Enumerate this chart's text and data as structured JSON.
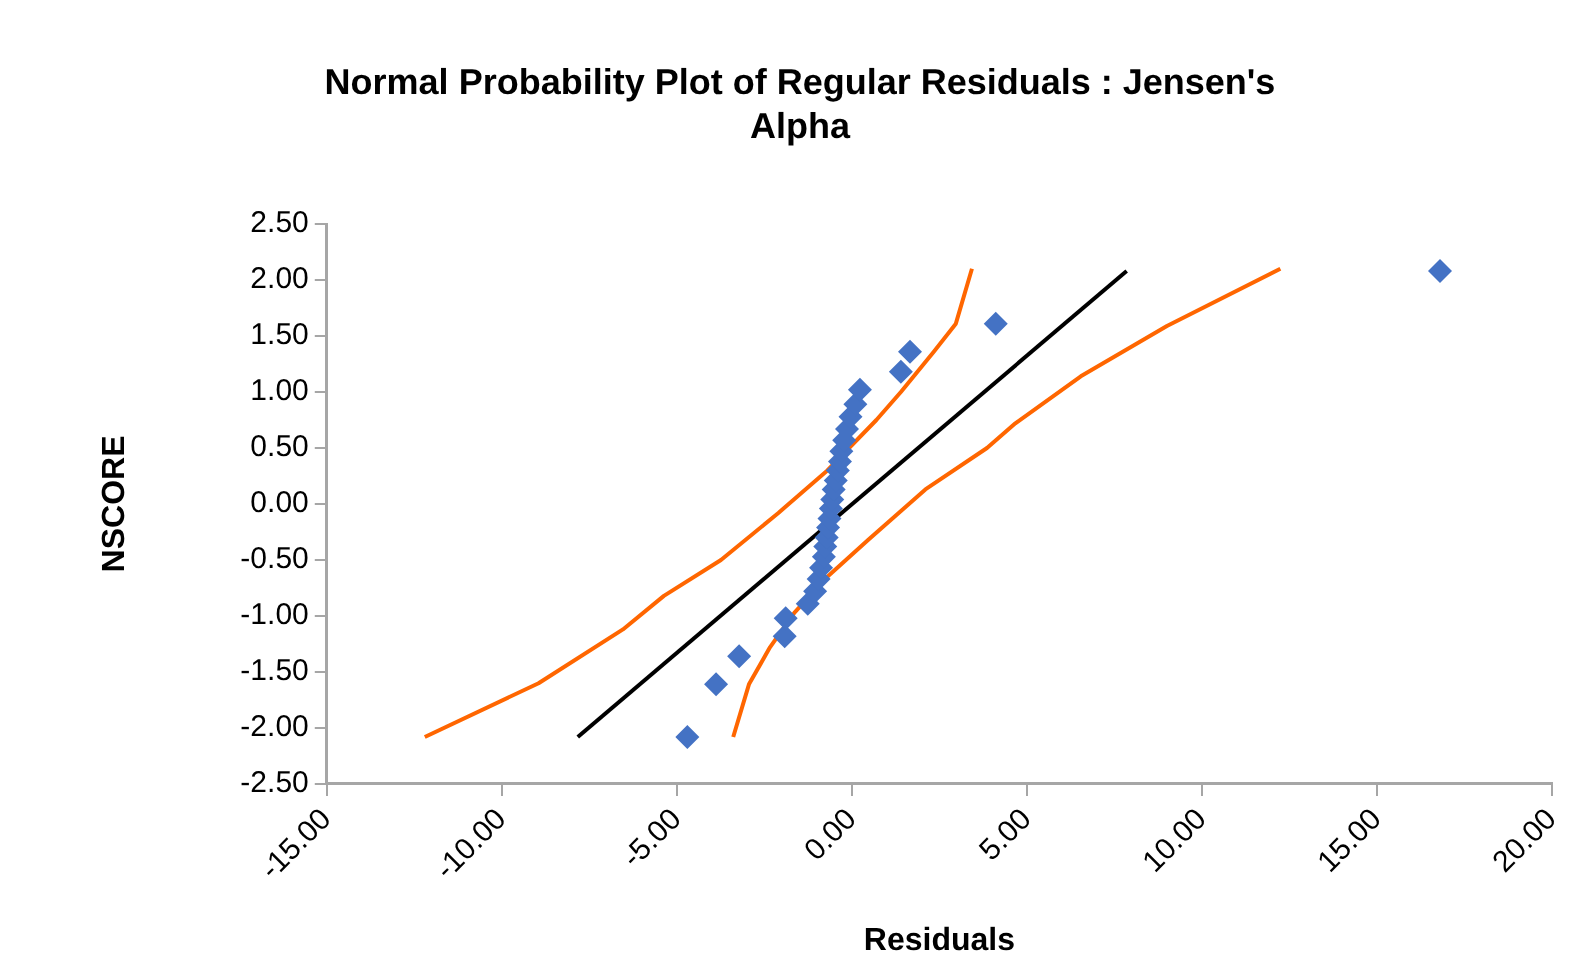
{
  "chart_data": {
    "type": "scatter",
    "title": "Normal Probability Plot of Regular Residuals : Jensen's Alpha",
    "xlabel": "Residuals",
    "ylabel": "NSCORE",
    "xlim": [
      -15,
      20
    ],
    "xticks": [
      {
        "value": -15,
        "label": "-15.00"
      },
      {
        "value": -10,
        "label": "-10.00"
      },
      {
        "value": -5,
        "label": "-5.00"
      },
      {
        "value": 0,
        "label": "0.00"
      },
      {
        "value": 5,
        "label": "5.00"
      },
      {
        "value": 10,
        "label": "10.00"
      },
      {
        "value": 15,
        "label": "15.00"
      },
      {
        "value": 20,
        "label": "20.00"
      }
    ],
    "ylim": [
      -2.5,
      2.5
    ],
    "yticks": [
      {
        "value": -2.5,
        "label": "-2.50"
      },
      {
        "value": -2,
        "label": "-2.00"
      },
      {
        "value": -1.5,
        "label": "-1.50"
      },
      {
        "value": -1,
        "label": "-1.00"
      },
      {
        "value": -0.5,
        "label": "-0.50"
      },
      {
        "value": 0,
        "label": "0.00"
      },
      {
        "value": 0.5,
        "label": "0.50"
      },
      {
        "value": 1,
        "label": "1.00"
      },
      {
        "value": 1.5,
        "label": "1.50"
      },
      {
        "value": 2,
        "label": "2.00"
      },
      {
        "value": 2.5,
        "label": "2.50"
      }
    ],
    "grid": false,
    "legend": false,
    "series": [
      {
        "type": "line",
        "color": "#ff6600",
        "marker": "none",
        "x": [
          -12.2,
          -8.95,
          -6.54,
          -5.37,
          -3.74,
          -2.1,
          -0.7,
          0.7,
          1.4,
          2.34,
          2.97,
          3.43
        ],
        "values": [
          -2.08,
          -1.6,
          -1.12,
          -0.82,
          -0.5,
          -0.08,
          0.3,
          0.75,
          1.0,
          1.36,
          1.61,
          2.1
        ]
      },
      {
        "type": "line",
        "color": "#ff6600",
        "marker": "none",
        "x": [
          -3.39,
          -2.94,
          -2.34,
          -1.64,
          -0.7,
          0.47,
          2.1,
          3.86,
          4.67,
          6.54,
          9.0,
          12.24
        ],
        "values": [
          -2.08,
          -1.61,
          -1.28,
          -0.97,
          -0.65,
          -0.32,
          0.13,
          0.5,
          0.72,
          1.14,
          1.59,
          2.1
        ]
      },
      {
        "type": "line",
        "color": "#000000",
        "marker": "none",
        "x": [
          -7.83,
          7.85
        ],
        "values": [
          -2.08,
          2.08
        ]
      },
      {
        "color": "#4472c4",
        "marker": "diamond",
        "x": [
          -4.7,
          -3.88,
          -3.22,
          -1.92,
          -1.89,
          -1.26,
          -1.05,
          -0.95,
          -0.88,
          -0.8,
          -0.76,
          -0.72,
          -0.68,
          -0.64,
          -0.6,
          -0.56,
          -0.52,
          -0.46,
          -0.4,
          -0.34,
          -0.3,
          -0.22,
          -0.14,
          -0.04,
          0.1,
          0.23,
          1.4,
          1.66,
          4.11,
          16.8
        ],
        "values": [
          -2.08,
          -1.61,
          -1.36,
          -1.18,
          -1.02,
          -0.89,
          -0.78,
          -0.67,
          -0.57,
          -0.47,
          -0.38,
          -0.3,
          -0.21,
          -0.13,
          -0.04,
          0.04,
          0.13,
          0.21,
          0.3,
          0.38,
          0.47,
          0.57,
          0.67,
          0.78,
          0.89,
          1.02,
          1.18,
          1.36,
          1.61,
          2.08
        ]
      }
    ]
  }
}
